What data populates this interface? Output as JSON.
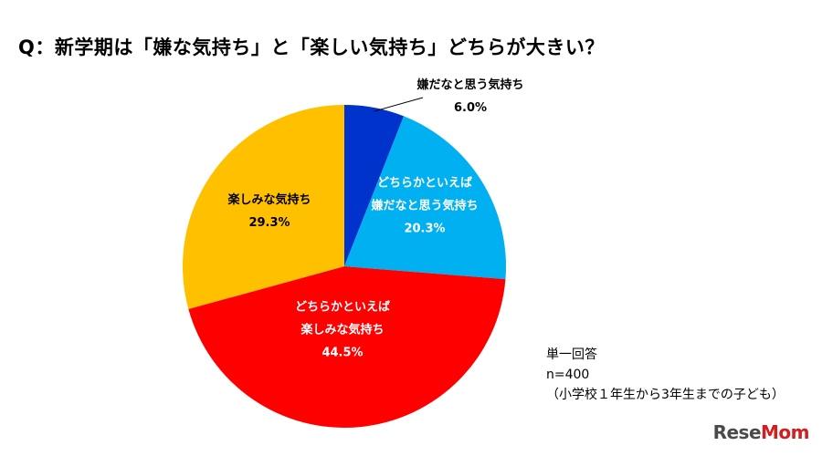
{
  "title": "Q：新学期は「嫌な気持ち」と「楽しい気持ち」どちらが大きい？",
  "notes": {
    "line1": "単一回答",
    "line2": "n=400",
    "line3": "（小学校１年生から3年生までの子ども）"
  },
  "logo": "ReseMom",
  "chart_data": {
    "type": "pie",
    "title": "Q：新学期は「嫌な気持ち」と「楽しい気持ち」どちらが大きい？",
    "start_angle_deg": 0,
    "direction": "clockwise",
    "slices": [
      {
        "label": "嫌だなと思う気持ち",
        "value": 6.0,
        "value_label": "6.0%",
        "color": "#0033cc"
      },
      {
        "label": "どちらかといえば 嫌だなと思う気持ち",
        "value": 20.3,
        "value_label": "20.3%",
        "color": "#00b0f0"
      },
      {
        "label": "どちらかといえば 楽しみな気持ち",
        "value": 44.5,
        "value_label": "44.5%",
        "color": "#ff0000"
      },
      {
        "label": "楽しみな気持ち",
        "value": 29.3,
        "value_label": "29.3%",
        "color": "#ffc000"
      }
    ]
  }
}
